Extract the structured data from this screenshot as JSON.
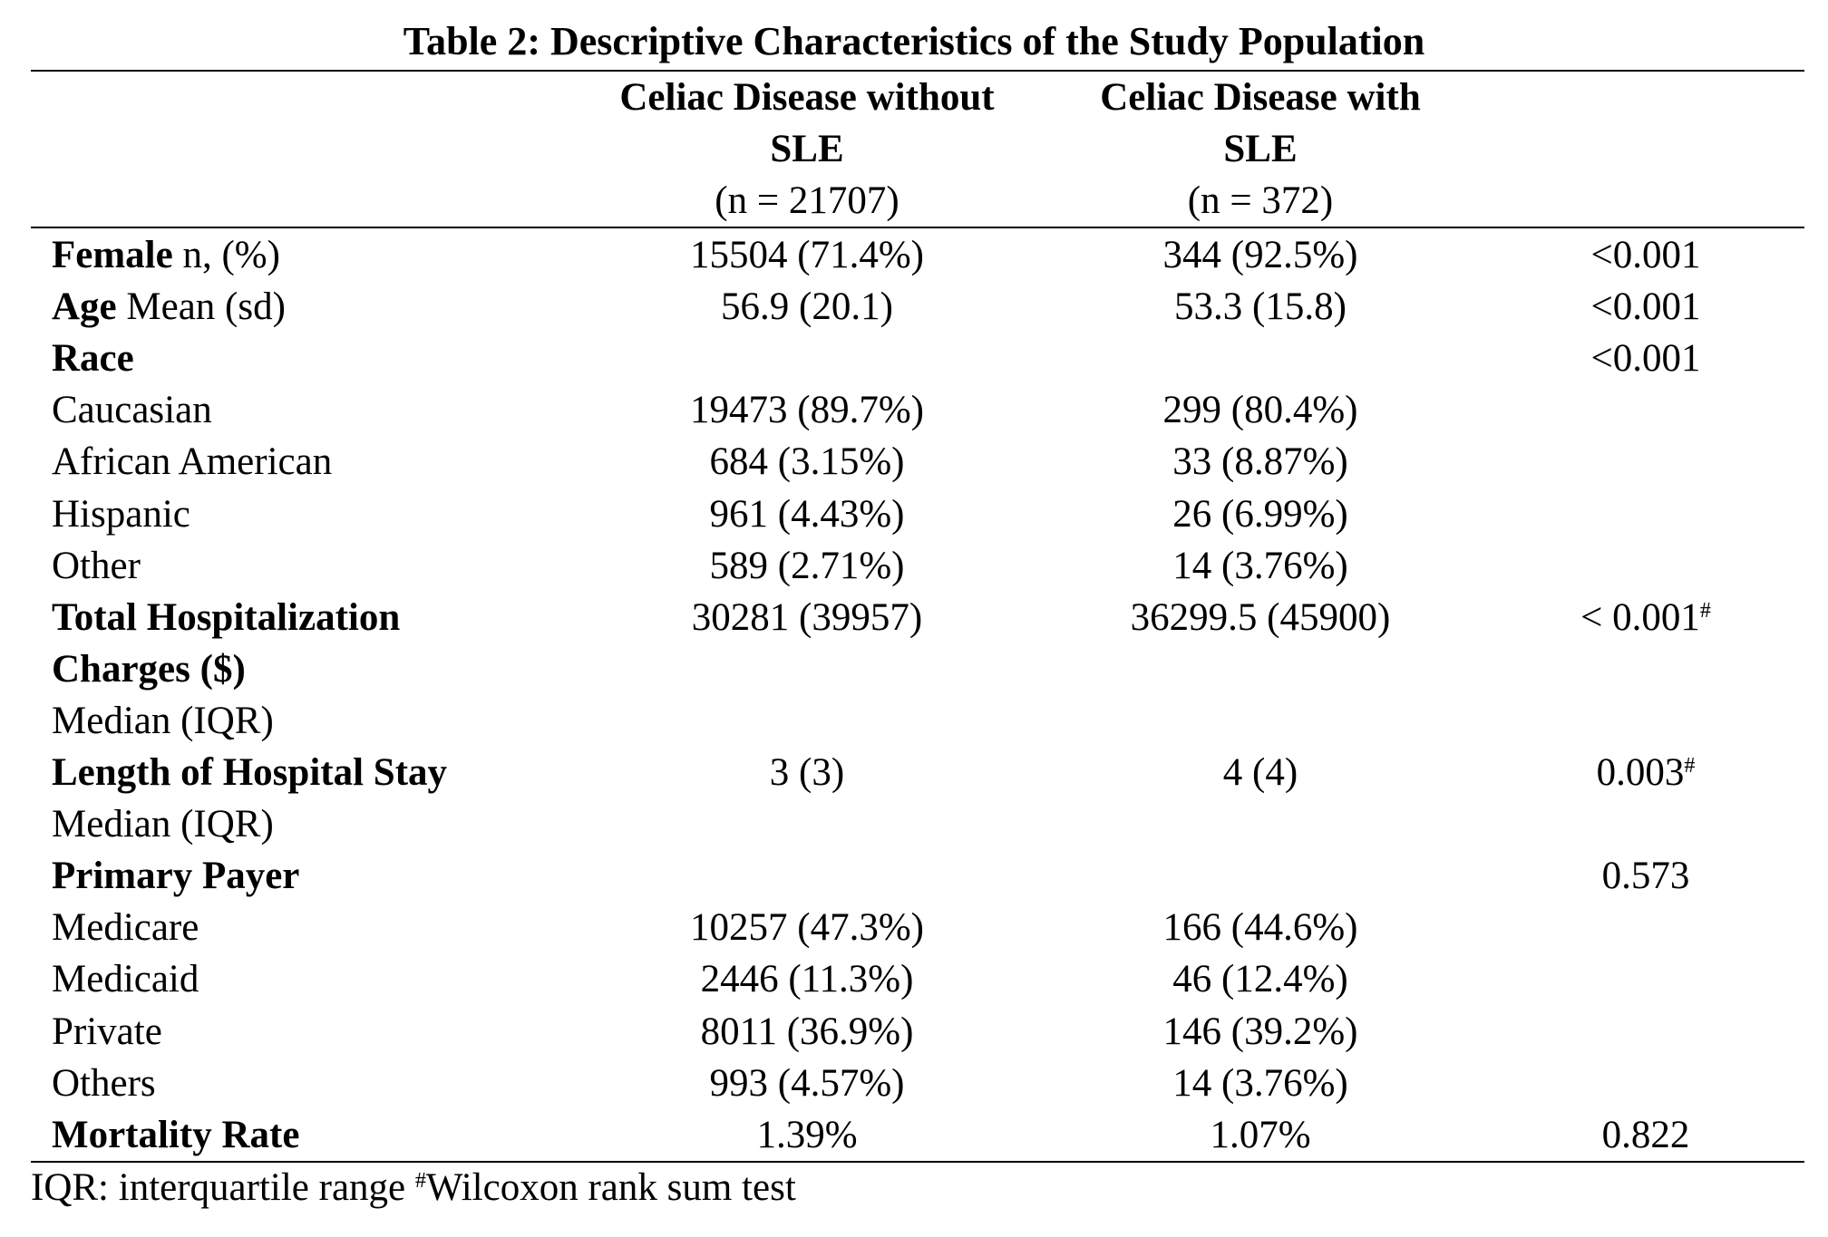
{
  "table": {
    "title": "Table 2: Descriptive Characteristics of the Study Population",
    "header": {
      "col1_line1": "Celiac Disease without",
      "col1_line2": "SLE",
      "col1_n": "(n = 21707)",
      "col2_line1": "Celiac Disease with",
      "col2_line2": "SLE",
      "col2_n": "(n = 372)"
    },
    "rows": [
      {
        "label_bold": "Female",
        "label_rest": " n, (%)",
        "c1": "15504 (71.4%)",
        "c2": "344 (92.5%)",
        "p": "<0.001",
        "p_sup": ""
      },
      {
        "label_bold": "Age",
        "label_rest": " Mean (sd)",
        "c1": "56.9 (20.1)",
        "c2": "53.3 (15.8)",
        "p": "<0.001",
        "p_sup": ""
      },
      {
        "label_bold": "Race",
        "label_rest": "",
        "c1": "",
        "c2": "",
        "p": "<0.001",
        "p_sup": ""
      },
      {
        "label_bold": "",
        "label_rest": "Caucasian",
        "c1": "19473 (89.7%)",
        "c2": "299 (80.4%)",
        "p": "",
        "p_sup": ""
      },
      {
        "label_bold": "",
        "label_rest": "African American",
        "c1": "684 (3.15%)",
        "c2": "33 (8.87%)",
        "p": "",
        "p_sup": ""
      },
      {
        "label_bold": "",
        "label_rest": "Hispanic",
        "c1": "961 (4.43%)",
        "c2": "26 (6.99%)",
        "p": "",
        "p_sup": ""
      },
      {
        "label_bold": "",
        "label_rest": "Other",
        "c1": "589 (2.71%)",
        "c2": "14 (3.76%)",
        "p": "",
        "p_sup": ""
      },
      {
        "label_bold": "Total Hospitalization",
        "label_rest": "",
        "c1": "30281 (39957)",
        "c2": "36299.5 (45900)",
        "p": "< 0.001",
        "p_sup": "#"
      },
      {
        "label_bold": "Charges ($)",
        "label_rest": "",
        "c1": "",
        "c2": "",
        "p": "",
        "p_sup": ""
      },
      {
        "label_bold": "",
        "label_rest": "Median (IQR)",
        "c1": "",
        "c2": "",
        "p": "",
        "p_sup": ""
      },
      {
        "label_bold": "Length of Hospital Stay",
        "label_rest": "",
        "c1": "3 (3)",
        "c2": "4 (4)",
        "p": "0.003",
        "p_sup": "#"
      },
      {
        "label_bold": "",
        "label_rest": "Median (IQR)",
        "c1": "",
        "c2": "",
        "p": "",
        "p_sup": ""
      },
      {
        "label_bold": "Primary Payer",
        "label_rest": "",
        "c1": "",
        "c2": "",
        "p": "0.573",
        "p_sup": ""
      },
      {
        "label_bold": "",
        "label_rest": "Medicare",
        "c1": "10257 (47.3%)",
        "c2": "166 (44.6%)",
        "p": "",
        "p_sup": ""
      },
      {
        "label_bold": "",
        "label_rest": "Medicaid",
        "c1": "2446 (11.3%)",
        "c2": "46 (12.4%)",
        "p": "",
        "p_sup": ""
      },
      {
        "label_bold": "",
        "label_rest": "Private",
        "c1": "8011 (36.9%)",
        "c2": "146 (39.2%)",
        "p": "",
        "p_sup": ""
      },
      {
        "label_bold": "",
        "label_rest": "Others",
        "c1": "993 (4.57%)",
        "c2": "14 (3.76%)",
        "p": "",
        "p_sup": ""
      },
      {
        "label_bold": "Mortality Rate",
        "label_rest": "",
        "c1": "1.39%",
        "c2": "1.07%",
        "p": "0.822",
        "p_sup": ""
      }
    ],
    "footnote": {
      "part1": "IQR: interquartile range ",
      "sup": "#",
      "part2": "Wilcoxon rank sum test"
    }
  }
}
